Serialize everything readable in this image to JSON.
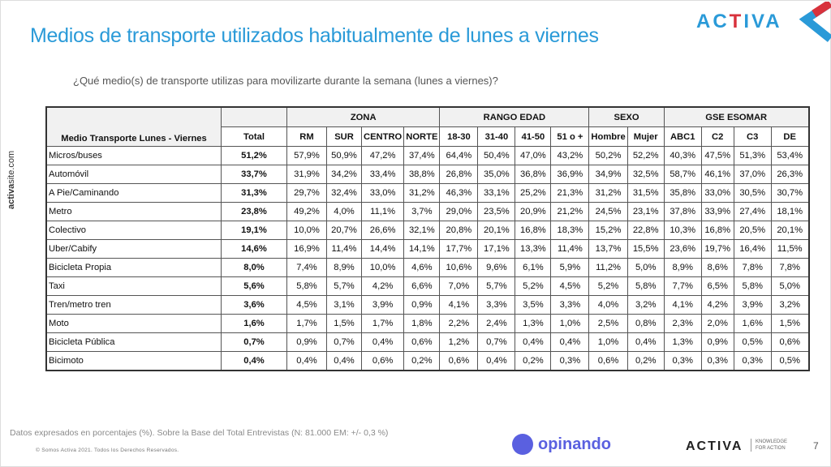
{
  "title": "Medios de transporte utilizados habitualmente de lunes a viernes",
  "subtitle": "¿Qué medio(s) de transporte utilizas para movilizarte durante la semana (lunes a viernes)?",
  "logo": {
    "a": "AC",
    "t": "T",
    "b": "IVA"
  },
  "side_text": {
    "bold": "activa",
    "rest": "site.com"
  },
  "table": {
    "row_header": "Medio Transporte Lunes - Viernes",
    "groups": [
      {
        "label": "ZONA",
        "span": 4
      },
      {
        "label": "RANGO EDAD",
        "span": 4
      },
      {
        "label": "SEXO",
        "span": 2
      },
      {
        "label": "GSE ESOMAR",
        "span": 4
      }
    ],
    "columns": [
      "Total",
      "RM",
      "SUR",
      "CENTRO",
      "NORTE",
      "18-30",
      "31-40",
      "41-50",
      "51 o +",
      "Hombre",
      "Mujer",
      "ABC1",
      "C2",
      "C3",
      "DE"
    ],
    "rows": [
      {
        "label": "Micros/buses",
        "values": [
          "51,2%",
          "57,9%",
          "50,9%",
          "47,2%",
          "37,4%",
          "64,4%",
          "50,4%",
          "47,0%",
          "43,2%",
          "50,2%",
          "52,2%",
          "40,3%",
          "47,5%",
          "51,3%",
          "53,4%"
        ]
      },
      {
        "label": "Automóvil",
        "values": [
          "33,7%",
          "31,9%",
          "34,2%",
          "33,4%",
          "38,8%",
          "26,8%",
          "35,0%",
          "36,8%",
          "36,9%",
          "34,9%",
          "32,5%",
          "58,7%",
          "46,1%",
          "37,0%",
          "26,3%"
        ]
      },
      {
        "label": "A Pie/Caminando",
        "values": [
          "31,3%",
          "29,7%",
          "32,4%",
          "33,0%",
          "31,2%",
          "46,3%",
          "33,1%",
          "25,2%",
          "21,3%",
          "31,2%",
          "31,5%",
          "35,8%",
          "33,0%",
          "30,5%",
          "30,7%"
        ]
      },
      {
        "label": "Metro",
        "values": [
          "23,8%",
          "49,2%",
          "4,0%",
          "11,1%",
          "3,7%",
          "29,0%",
          "23,5%",
          "20,9%",
          "21,2%",
          "24,5%",
          "23,1%",
          "37,8%",
          "33,9%",
          "27,4%",
          "18,1%"
        ]
      },
      {
        "label": "Colectivo",
        "values": [
          "19,1%",
          "10,0%",
          "20,7%",
          "26,6%",
          "32,1%",
          "20,8%",
          "20,1%",
          "16,8%",
          "18,3%",
          "15,2%",
          "22,8%",
          "10,3%",
          "16,8%",
          "20,5%",
          "20,1%"
        ]
      },
      {
        "label": "Uber/Cabify",
        "values": [
          "14,6%",
          "16,9%",
          "11,4%",
          "14,4%",
          "14,1%",
          "17,7%",
          "17,1%",
          "13,3%",
          "11,4%",
          "13,7%",
          "15,5%",
          "23,6%",
          "19,7%",
          "16,4%",
          "11,5%"
        ]
      },
      {
        "label": "Bicicleta Propia",
        "values": [
          "8,0%",
          "7,4%",
          "8,9%",
          "10,0%",
          "4,6%",
          "10,6%",
          "9,6%",
          "6,1%",
          "5,9%",
          "11,2%",
          "5,0%",
          "8,9%",
          "8,6%",
          "7,8%",
          "7,8%"
        ]
      },
      {
        "label": "Taxi",
        "values": [
          "5,6%",
          "5,8%",
          "5,7%",
          "4,2%",
          "6,6%",
          "7,0%",
          "5,7%",
          "5,2%",
          "4,5%",
          "5,2%",
          "5,8%",
          "7,7%",
          "6,5%",
          "5,8%",
          "5,0%"
        ]
      },
      {
        "label": "Tren/metro tren",
        "values": [
          "3,6%",
          "4,5%",
          "3,1%",
          "3,9%",
          "0,9%",
          "4,1%",
          "3,3%",
          "3,5%",
          "3,3%",
          "4,0%",
          "3,2%",
          "4,1%",
          "4,2%",
          "3,9%",
          "3,2%"
        ]
      },
      {
        "label": "Moto",
        "values": [
          "1,6%",
          "1,7%",
          "1,5%",
          "1,7%",
          "1,8%",
          "2,2%",
          "2,4%",
          "1,3%",
          "1,0%",
          "2,5%",
          "0,8%",
          "2,3%",
          "2,0%",
          "1,6%",
          "1,5%"
        ]
      },
      {
        "label": "Bicicleta Pública",
        "values": [
          "0,7%",
          "0,9%",
          "0,7%",
          "0,4%",
          "0,6%",
          "1,2%",
          "0,7%",
          "0,4%",
          "0,4%",
          "1,0%",
          "0,4%",
          "1,3%",
          "0,9%",
          "0,5%",
          "0,6%"
        ]
      },
      {
        "label": "Bicimoto",
        "values": [
          "0,4%",
          "0,4%",
          "0,4%",
          "0,6%",
          "0,2%",
          "0,6%",
          "0,4%",
          "0,2%",
          "0,3%",
          "0,6%",
          "0,2%",
          "0,3%",
          "0,3%",
          "0,3%",
          "0,5%"
        ]
      }
    ]
  },
  "footer": {
    "note": "Datos expresados en porcentajes (%). Sobre la Base del Total Entrevistas (N: 81.000 EM: +/- 0,3 %)",
    "copyright": "© Somos Activa 2021. Todos los Derechos Reservados.",
    "opinando": "opinando",
    "activa": "ACTIVA",
    "tagline1": "KNOWLEDGE",
    "tagline2": "FOR ACTION",
    "page": "7"
  },
  "colors": {
    "accent": "#2a9ad8",
    "red": "#d8323c",
    "opinando": "#5a60e0"
  }
}
